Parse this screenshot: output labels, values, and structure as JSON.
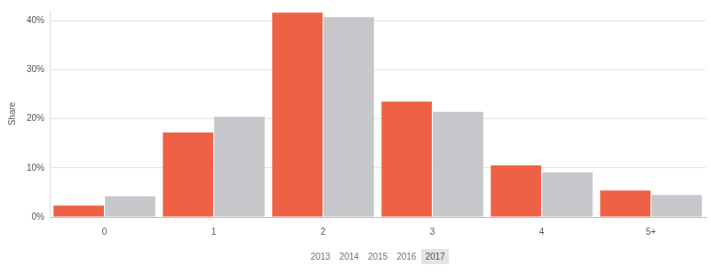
{
  "chart_data": {
    "type": "bar",
    "y_label": "Share",
    "categories": [
      "0",
      "1",
      "2",
      "3",
      "4",
      "5+"
    ],
    "series": [
      {
        "color": "#ef6144",
        "values": [
          2.3,
          17.2,
          41.6,
          23.5,
          10.5,
          5.4
        ]
      },
      {
        "color": "#c6c7ca",
        "values": [
          4.2,
          20.4,
          40.7,
          21.4,
          9.1,
          4.5
        ]
      }
    ],
    "ylim": [
      0,
      42
    ],
    "yticks": [
      {
        "value": 0,
        "label": "0%"
      },
      {
        "value": 10,
        "label": "10%"
      },
      {
        "value": 20,
        "label": "20%"
      },
      {
        "value": 30,
        "label": "30%"
      },
      {
        "value": 40,
        "label": "40%"
      }
    ],
    "grid": true,
    "timeline": {
      "labels": [
        "2013",
        "2014",
        "2015",
        "2016",
        "2017"
      ],
      "selected": "2017"
    }
  }
}
